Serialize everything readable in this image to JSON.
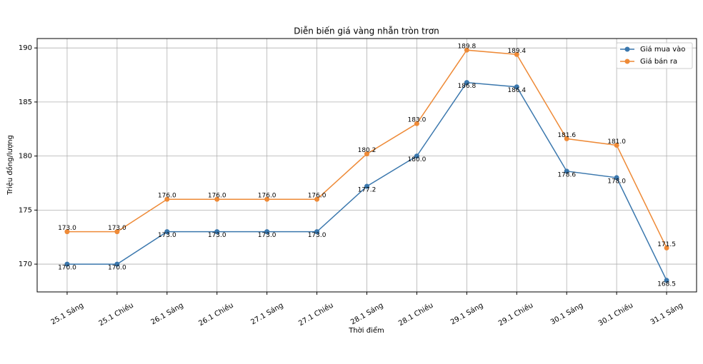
{
  "chart_data": {
    "type": "line",
    "title": "Diễn biến giá vàng nhẫn tròn trơn",
    "x_label": "Thời điểm",
    "y_label": "Triệu đồng/lượng",
    "categories": [
      "25.1 Sáng",
      "25.1 Chiều",
      "26.1 Sáng",
      "26.1 Chiều",
      "27.1 Sáng",
      "27.1 Chiều",
      "28.1 Sáng",
      "28.1 Chiều",
      "29.1 Sáng",
      "29.1 Chiều",
      "30.1 Sáng",
      "30.1 Chiều",
      "31.1 Sáng"
    ],
    "series": [
      {
        "name": "Giá mua vào",
        "color": "#3a77ad",
        "values": [
          170,
          170,
          173,
          173,
          173,
          173,
          177.2,
          180,
          186.8,
          186.4,
          178.6,
          178,
          168.5
        ],
        "value_labels": [
          "170.0",
          "170.0",
          "173.0",
          "173.0",
          "173.0",
          "173.0",
          "177.2",
          "180.0",
          "186.8",
          "186.4",
          "178.6",
          "178.0",
          "168.5"
        ]
      },
      {
        "name": "Giá bán ra",
        "color": "#ee8a37",
        "values": [
          173,
          173,
          176,
          176,
          176,
          176,
          180.2,
          183,
          189.8,
          189.4,
          181.6,
          181,
          171.5
        ],
        "value_labels": [
          "173.0",
          "173.0",
          "176.0",
          "176.0",
          "176.0",
          "176.0",
          "180.2",
          "183.0",
          "189.8",
          "189.4",
          "181.6",
          "181.0",
          "171.5"
        ]
      }
    ],
    "ylim": [
      167.43,
      190.87
    ],
    "yticks": [
      170,
      175,
      180,
      185,
      190
    ],
    "grid": true,
    "legend": "upper right"
  }
}
